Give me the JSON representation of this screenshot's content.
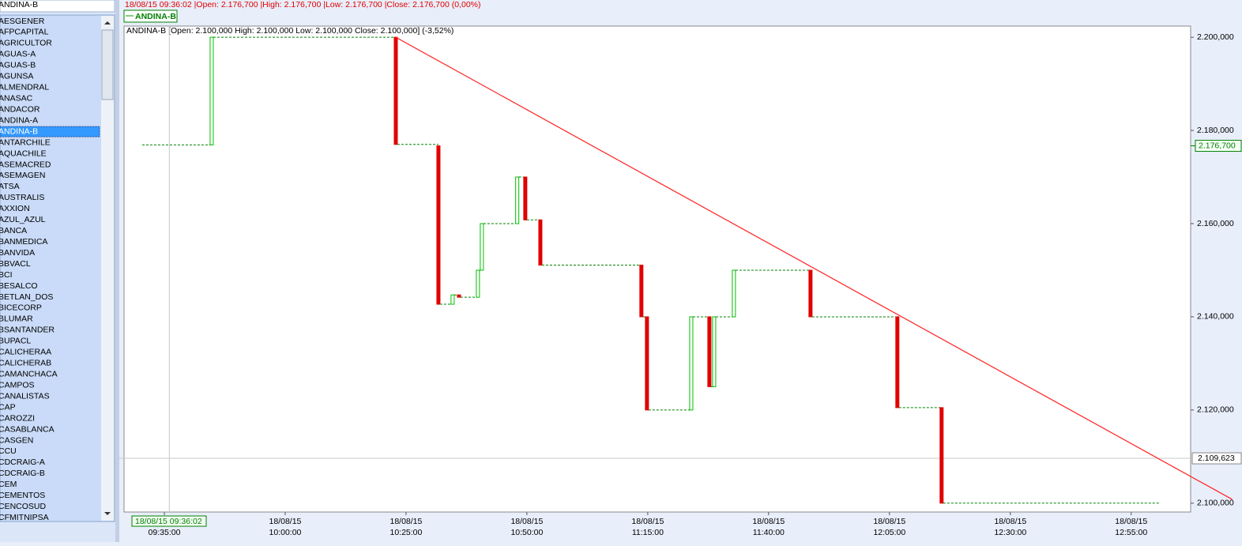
{
  "sidebar": {
    "symbol": "ANDINA-B",
    "selected": 10,
    "items": [
      "AESGENER",
      "AFPCAPITAL",
      "AGRICULTOR",
      "AGUAS-A",
      "AGUAS-B",
      "AGUNSA",
      "ALMENDRAL",
      "ANASAC",
      "ANDACOR",
      "ANDINA-A",
      "ANDINA-B",
      "ANTARCHILE",
      "AQUACHILE",
      "ASEMACRED",
      "ASEMAGEN",
      "ATSA",
      "AUSTRALIS",
      "AXXION",
      "AZUL_AZUL",
      "BANCA",
      "BANMEDICA",
      "BANVIDA",
      "BBVACL",
      "BCI",
      "BESALCO",
      "BETLAN_DOS",
      "BICECORP",
      "BLUMAR",
      "BSANTANDER",
      "BUPACL",
      "CALICHERAA",
      "CALICHERAB",
      "CAMANCHACA",
      "CAMPOS",
      "CANALISTAS",
      "CAP",
      "CAROZZI",
      "CASABLANCA",
      "CASGEN",
      "CCU",
      "CDCRAIG-A",
      "CDCRAIG-B",
      "CEM",
      "CEMENTOS",
      "CENCOSUD",
      "CFMITNIPSA"
    ]
  },
  "chart_data": {
    "type": "kagi",
    "status": "18/08/15 09:36:02 |Open: 2.176,700 |High: 2.176,700 |Low: 2.176,700 |Close: 2.176,700 (0,00%)",
    "legend": "ANDINA-B",
    "info": "ANDINA-B [Open: 2.100,000  High: 2.100,000  Low: 2.100,000  Close: 2.100,000] (-3,52%)",
    "up_color": "#00c000",
    "down_color": "#e00000",
    "trend_color": "#ff2020",
    "xlim": [
      "09:26:40",
      "13:07:18"
    ],
    "ylim": [
      2098.1,
      2202.4
    ],
    "yticks": [
      {
        "value": 2100,
        "label": "2.100,000"
      },
      {
        "value": 2120,
        "label": "2.120,000"
      },
      {
        "value": 2140,
        "label": "2.140,000"
      },
      {
        "value": 2160,
        "label": "2.160,000"
      },
      {
        "value": 2180,
        "label": "2.180,000"
      },
      {
        "value": 2200,
        "label": "2.200,000"
      }
    ],
    "xticks": [
      {
        "date": "18/08/15",
        "time": "09:35:00"
      },
      {
        "date": "18/08/15",
        "time": "10:00:00"
      },
      {
        "date": "18/08/15",
        "time": "10:25:00"
      },
      {
        "date": "18/08/15",
        "time": "10:50:00"
      },
      {
        "date": "18/08/15",
        "time": "11:15:00"
      },
      {
        "date": "18/08/15",
        "time": "11:40:00"
      },
      {
        "date": "18/08/15",
        "time": "12:05:00"
      },
      {
        "date": "18/08/15",
        "time": "12:30:00"
      },
      {
        "date": "18/08/15",
        "time": "12:55:00"
      }
    ],
    "start": {
      "x": "09:30:25",
      "value": 2176.9
    },
    "end": {
      "x": "13:00:53"
    },
    "bars": [
      {
        "x": "09:44:48",
        "open": 2176.9,
        "close": 2200
      },
      {
        "x": "10:22:53",
        "open": 2200,
        "close": 2177
      },
      {
        "x": "10:31:42",
        "open": 2176.7,
        "close": 2142.7
      },
      {
        "x": "10:34:38",
        "open": 2142.7,
        "close": 2144.7
      },
      {
        "x": "10:35:57",
        "open": 2144.7,
        "close": 2144.2
      },
      {
        "x": "10:39:52",
        "open": 2144.2,
        "close": 2150
      },
      {
        "x": "10:40:41",
        "open": 2150,
        "close": 2160
      },
      {
        "x": "10:48:00",
        "open": 2160,
        "close": 2170
      },
      {
        "x": "10:49:40",
        "open": 2170,
        "close": 2160.8
      },
      {
        "x": "10:52:47",
        "open": 2160.8,
        "close": 2151.1
      },
      {
        "x": "11:13:41",
        "open": 2151.1,
        "close": 2140
      },
      {
        "x": "11:14:50",
        "open": 2140,
        "close": 2120
      },
      {
        "x": "11:24:00",
        "open": 2120,
        "close": 2140
      },
      {
        "x": "11:27:45",
        "open": 2140,
        "close": 2125
      },
      {
        "x": "11:28:44",
        "open": 2125,
        "close": 2140
      },
      {
        "x": "11:32:49",
        "open": 2140,
        "close": 2150
      },
      {
        "x": "11:48:40",
        "open": 2150,
        "close": 2140
      },
      {
        "x": "12:06:38",
        "open": 2140,
        "close": 2120.5
      },
      {
        "x": "12:15:47",
        "open": 2120.5,
        "close": 2100
      }
    ],
    "trendline": {
      "x": [
        "10:22:53",
        "13:15:55"
      ],
      "y": [
        2200,
        2100.8
      ]
    },
    "last": {
      "value": 2176.7,
      "label": "2.176,700"
    },
    "crosshair": {
      "label": "18/08/15 09:36:02",
      "time": "09:36:02",
      "value": 2109.623,
      "value_label": "2.109,623"
    }
  }
}
